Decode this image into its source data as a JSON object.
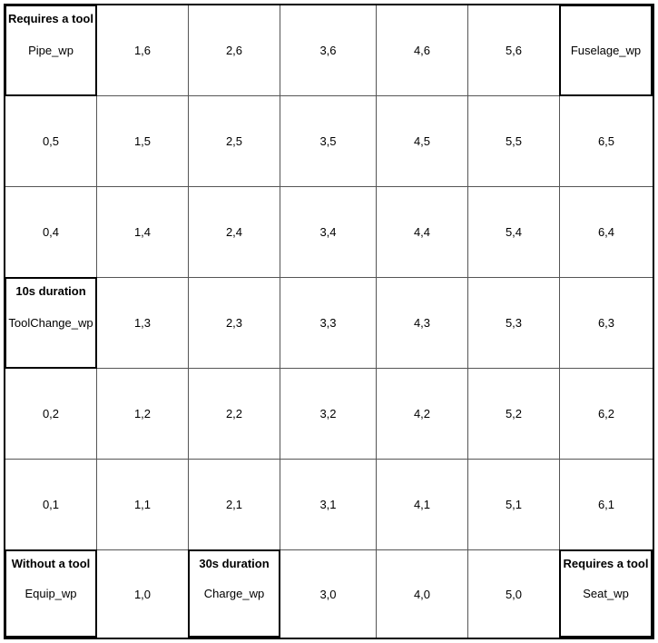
{
  "grid": {
    "rows": [
      [
        {
          "label": "Pipe_wp",
          "note": "Requires a tool"
        },
        {
          "label": "1,6"
        },
        {
          "label": "2,6"
        },
        {
          "label": "3,6"
        },
        {
          "label": "4,6"
        },
        {
          "label": "5,6"
        },
        {
          "label": "Fuselage_wp",
          "note": ""
        }
      ],
      [
        {
          "label": "0,5"
        },
        {
          "label": "1,5"
        },
        {
          "label": "2,5"
        },
        {
          "label": "3,5"
        },
        {
          "label": "4,5"
        },
        {
          "label": "5,5"
        },
        {
          "label": "6,5"
        }
      ],
      [
        {
          "label": "0,4"
        },
        {
          "label": "1,4"
        },
        {
          "label": "2,4"
        },
        {
          "label": "3,4"
        },
        {
          "label": "4,4"
        },
        {
          "label": "5,4"
        },
        {
          "label": "6,4"
        }
      ],
      [
        {
          "label": "ToolChange_wp",
          "note": "10s duration"
        },
        {
          "label": "1,3"
        },
        {
          "label": "2,3"
        },
        {
          "label": "3,3"
        },
        {
          "label": "4,3"
        },
        {
          "label": "5,3"
        },
        {
          "label": "6,3"
        }
      ],
      [
        {
          "label": "0,2"
        },
        {
          "label": "1,2"
        },
        {
          "label": "2,2"
        },
        {
          "label": "3,2"
        },
        {
          "label": "4,2"
        },
        {
          "label": "5,2"
        },
        {
          "label": "6,2"
        }
      ],
      [
        {
          "label": "0,1"
        },
        {
          "label": "1,1"
        },
        {
          "label": "2,1"
        },
        {
          "label": "3,1"
        },
        {
          "label": "4,1"
        },
        {
          "label": "5,1"
        },
        {
          "label": "6,1"
        }
      ],
      [
        {
          "label": "Equip_wp",
          "note": "Without a tool"
        },
        {
          "label": "1,0"
        },
        {
          "label": "Charge_wp",
          "note": "30s duration"
        },
        {
          "label": "3,0"
        },
        {
          "label": "4,0"
        },
        {
          "label": "5,0"
        },
        {
          "label": "Seat_wp",
          "note": "Requires a tool"
        }
      ]
    ]
  }
}
